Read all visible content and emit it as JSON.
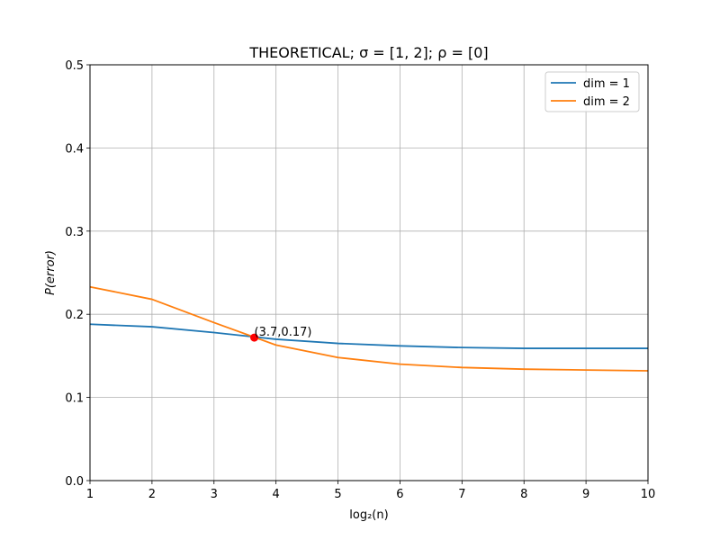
{
  "chart_data": {
    "type": "line",
    "title": "THEORETICAL;  σ = [1, 2];  ρ = [0]",
    "xlabel": "log₂(n)",
    "ylabel": "P(error)",
    "xlim": [
      1,
      10
    ],
    "ylim": [
      0,
      0.5
    ],
    "xticks": [
      "1",
      "2",
      "3",
      "4",
      "5",
      "6",
      "7",
      "8",
      "9",
      "10"
    ],
    "yticks": [
      "0.0",
      "0.1",
      "0.2",
      "0.3",
      "0.4",
      "0.5"
    ],
    "grid": true,
    "legend_position": "top-right",
    "x": [
      1,
      2,
      3,
      4,
      5,
      6,
      7,
      8,
      9,
      10
    ],
    "series": [
      {
        "name": "dim = 1",
        "color": "#1f77b4",
        "values": [
          0.188,
          0.185,
          0.178,
          0.17,
          0.165,
          0.162,
          0.16,
          0.159,
          0.159,
          0.159
        ]
      },
      {
        "name": "dim = 2",
        "color": "#ff7f0e",
        "values": [
          0.233,
          0.218,
          0.19,
          0.163,
          0.148,
          0.14,
          0.136,
          0.134,
          0.133,
          0.132
        ]
      }
    ],
    "annotations": [
      {
        "x": 3.65,
        "y": 0.172,
        "text": "(3.7,0.17)",
        "color": "#ff0000"
      }
    ]
  }
}
